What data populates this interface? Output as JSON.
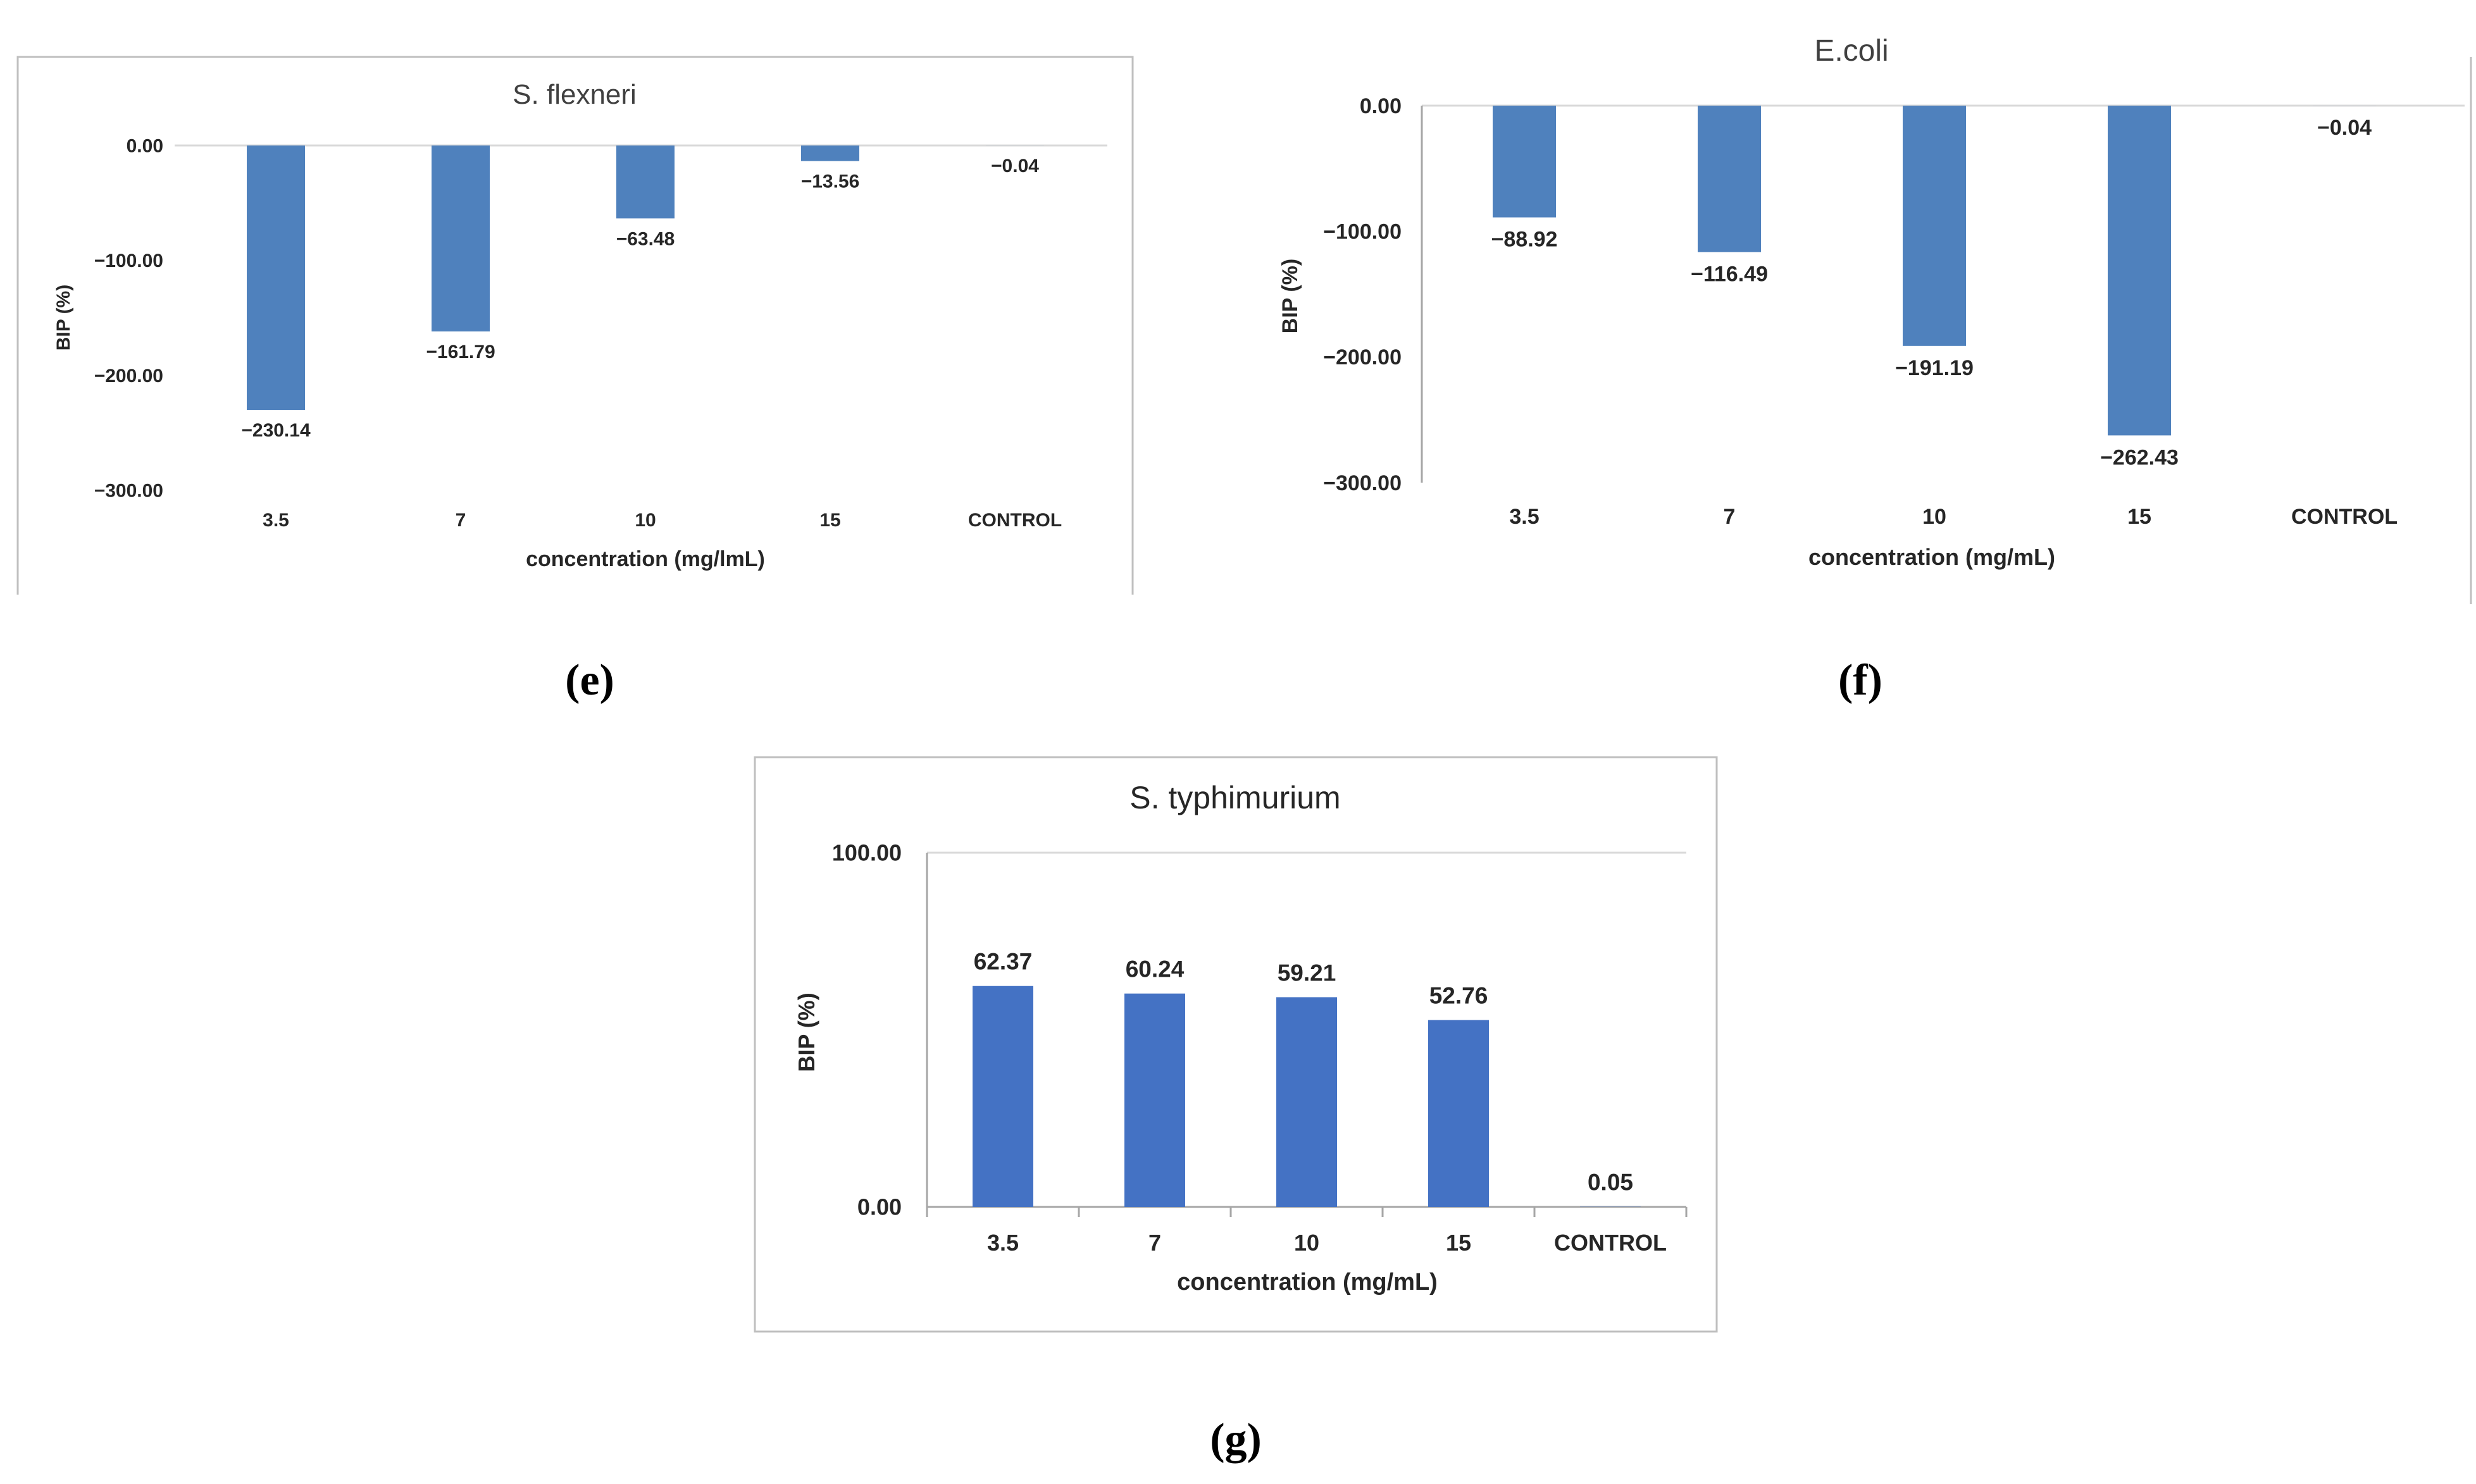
{
  "colors": {
    "bar_muted": "#4f81bd",
    "bar_bright": "#4472c4",
    "text": "#262626",
    "title_text": "#404040",
    "frame": "#bfbfbf",
    "axis": "#a6a6a6",
    "grid": "#d9d9d9"
  },
  "panels": {
    "e": {
      "label": "(e)"
    },
    "f": {
      "label": "(f)"
    },
    "g": {
      "label": "(g)"
    }
  },
  "chart_data": [
    {
      "id": "e",
      "type": "bar",
      "title": "S. flexneri",
      "xlabel": "concentration (mg/lmL)",
      "ylabel": "BIP (%)",
      "categories": [
        "3.5",
        "7",
        "10",
        "15",
        "CONTROL"
      ],
      "values": [
        -230.14,
        -161.79,
        -63.48,
        -13.56,
        -0.04
      ],
      "data_labels": [
        "−230.14",
        "−161.79",
        "−63.48",
        "−13.56",
        "−0.04"
      ],
      "yticks": [
        0,
        -100,
        -200,
        -300
      ],
      "ytick_labels": [
        "0.00",
        "−100.00",
        "−200.00",
        "−300.00"
      ],
      "ylim": [
        -300,
        0
      ],
      "grid": false
    },
    {
      "id": "f",
      "type": "bar",
      "title": "E.coli",
      "xlabel": "concentration (mg/mL)",
      "ylabel": "BIP (%)",
      "categories": [
        "3.5",
        "7",
        "10",
        "15",
        "CONTROL"
      ],
      "values": [
        -88.92,
        -116.49,
        -191.19,
        -262.43,
        -0.04
      ],
      "data_labels": [
        "−88.92",
        "−116.49",
        "−191.19",
        "−262.43",
        "−0.04"
      ],
      "yticks": [
        0,
        -100,
        -200,
        -300
      ],
      "ytick_labels": [
        "0.00",
        "−100.00",
        "−200.00",
        "−300.00"
      ],
      "ylim": [
        -300,
        0
      ],
      "grid": false
    },
    {
      "id": "g",
      "type": "bar",
      "title": "S. typhimurium",
      "xlabel": "concentration (mg/mL)",
      "ylabel": "BIP (%)",
      "categories": [
        "3.5",
        "7",
        "10",
        "15",
        "CONTROL"
      ],
      "values": [
        62.37,
        60.24,
        59.21,
        52.76,
        0.05
      ],
      "data_labels": [
        "62.37",
        "60.24",
        "59.21",
        "52.76",
        "0.05"
      ],
      "yticks": [
        0,
        100
      ],
      "ytick_labels": [
        "0.00",
        "100.00"
      ],
      "ylim": [
        0,
        100
      ],
      "grid": true
    }
  ]
}
